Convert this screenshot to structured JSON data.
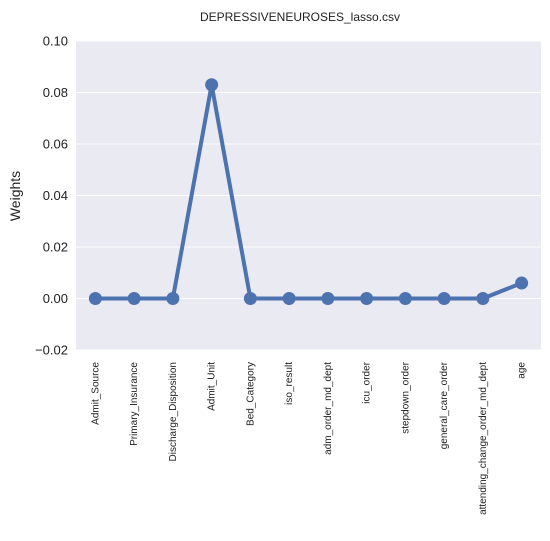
{
  "chart_data": {
    "type": "line",
    "title": "DEPRESSIVENEUROSES_lasso.csv",
    "xlabel": "",
    "ylabel": "Weights",
    "categories": [
      "Admit_Source",
      "Primary_Insurance",
      "Discharge_Disposition",
      "Admit_Unit",
      "Bed_Category",
      "iso_result",
      "adm_order_md_dept",
      "icu_order",
      "stepdown_order",
      "general_care_order",
      "attending_change_order_md_dept",
      "age"
    ],
    "series": [
      {
        "values": [
          0.0,
          0.0,
          0.0,
          0.083,
          0.0,
          0.0,
          0.0,
          0.0,
          0.0,
          0.0,
          0.0,
          0.006
        ],
        "color": "#4c72b0"
      }
    ],
    "ylim": [
      -0.02,
      0.1
    ],
    "yticks": [
      -0.02,
      0.0,
      0.02,
      0.04,
      0.06,
      0.08,
      0.1
    ],
    "ytick_labels": [
      "−0.02",
      "0.00",
      "0.02",
      "0.04",
      "0.06",
      "0.08",
      "0.10"
    ],
    "grid": true,
    "background_color": "#eaeaf2",
    "grid_color": "#ffffff"
  }
}
